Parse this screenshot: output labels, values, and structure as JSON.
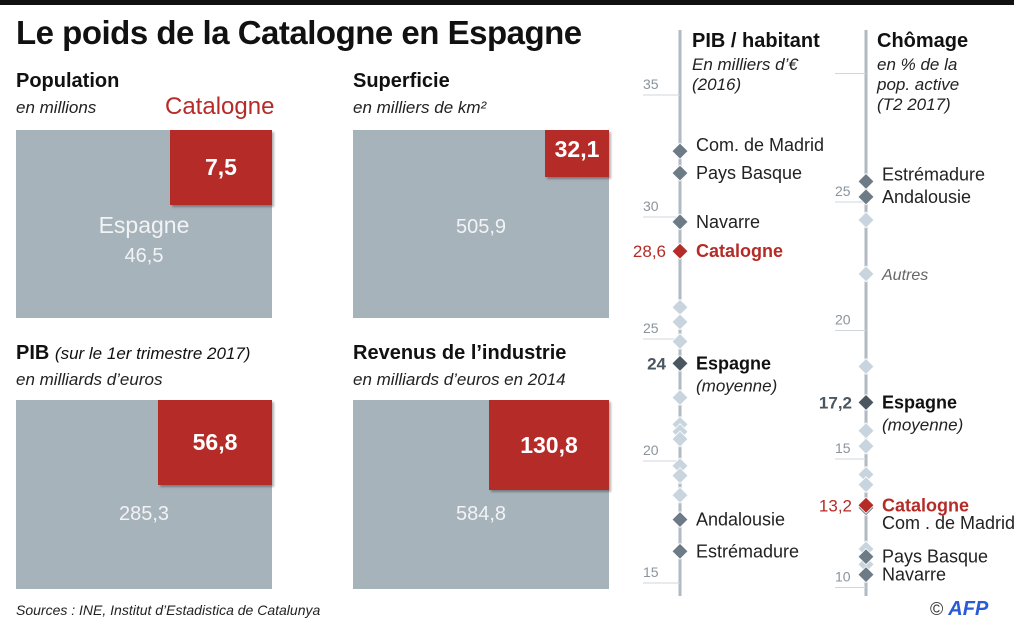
{
  "title": "Le poids de la Catalogne en Espagne",
  "catalogne_label": "Catalogne",
  "panels": {
    "population": {
      "title": "Population",
      "subtitle": "en millions",
      "espagne_label": "Espagne",
      "espagne": "46,5",
      "catalogne": "7,5"
    },
    "superficie": {
      "title": "Superficie",
      "subtitle": "en milliers de km²",
      "espagne": "505,9",
      "catalogne": "32,1"
    },
    "pib": {
      "title": "PIB",
      "title_note": "(sur le 1er trimestre 2017)",
      "subtitle": "en milliards d’euros",
      "espagne": "285,3",
      "catalogne": "56,8"
    },
    "revenus": {
      "title": "Revenus de l’industrie",
      "subtitle": "en milliards d’euros en 2014",
      "espagne": "584,8",
      "catalogne": "130,8"
    }
  },
  "sources": "Sources : INE, Institut d’Estadistica de Catalunya",
  "logo": {
    "copyright": "©",
    "text": "AFP",
    "watermark": "AFP"
  },
  "colors": {
    "espagne_box": "#a7b3bb",
    "catalogne": "#b52b27",
    "region": "#6d7b86",
    "other": "#c9d5de",
    "average": "#4a5660",
    "axis": "#b0bac2"
  },
  "chart_data": [
    {
      "type": "scatter",
      "title": "PIB / habitant",
      "subtitle_1": "En milliers d’€",
      "subtitle_2": "(2016)",
      "ylim": [
        15,
        36
      ],
      "ticks": [
        {
          "v": 35,
          "label": "35"
        },
        {
          "v": 30,
          "label": "30"
        },
        {
          "v": 25,
          "label": "25"
        },
        {
          "v": 20,
          "label": "20"
        },
        {
          "v": 15,
          "label": "15"
        }
      ],
      "points": [
        {
          "name": "Com. de Madrid",
          "value": 32.7,
          "kind": "region"
        },
        {
          "name": "Pays Basque",
          "value": 31.8,
          "kind": "region"
        },
        {
          "name": "Navarre",
          "value": 29.8,
          "kind": "region"
        },
        {
          "name": "Catalogne",
          "value": 28.6,
          "kind": "catalogne",
          "value_label": "28,6"
        },
        {
          "name": "Espagne",
          "note": "(moyenne)",
          "value": 24,
          "kind": "average",
          "value_label": "24"
        },
        {
          "name": "Andalousie",
          "value": 17.6,
          "kind": "region"
        },
        {
          "name": "Estrémadure",
          "value": 16.3,
          "kind": "region"
        }
      ],
      "others": [
        26.3,
        25.7,
        24.9,
        22.6,
        21.5,
        21.2,
        20.9,
        19.8,
        19.4,
        18.6
      ]
    },
    {
      "type": "scatter",
      "title": "Chômage",
      "subtitle_1": "en % de la",
      "subtitle_2": "pop. active",
      "subtitle_3": "(T2 2017)",
      "ylim": [
        10,
        30
      ],
      "ticks": [
        {
          "v": 30,
          "label": ""
        },
        {
          "v": 25,
          "label": "25"
        },
        {
          "v": 20,
          "label": "20"
        },
        {
          "v": 15,
          "label": "15"
        },
        {
          "v": 10,
          "label": "10"
        }
      ],
      "points": [
        {
          "name": "Estrémadure",
          "value": 25.8,
          "kind": "region"
        },
        {
          "name": "Andalousie",
          "value": 25.2,
          "kind": "region"
        },
        {
          "name": "Autres",
          "value": 22.2,
          "kind": "other_label"
        },
        {
          "name": "Espagne",
          "note": "(moyenne)",
          "value": 17.2,
          "kind": "average",
          "value_label": "17,2"
        },
        {
          "name": "Com . de Madrid",
          "value": 13.1,
          "kind": "region"
        },
        {
          "name": "Catalogne",
          "value": 13.2,
          "kind": "catalogne",
          "value_label": "13,2"
        },
        {
          "name": "Pays Basque",
          "value": 11.2,
          "kind": "region"
        },
        {
          "name": "Navarre",
          "value": 10.5,
          "kind": "region"
        }
      ],
      "others": [
        24.3,
        18.6,
        16.1,
        15.5,
        14.4,
        14.0,
        11.5,
        10.9
      ]
    }
  ]
}
